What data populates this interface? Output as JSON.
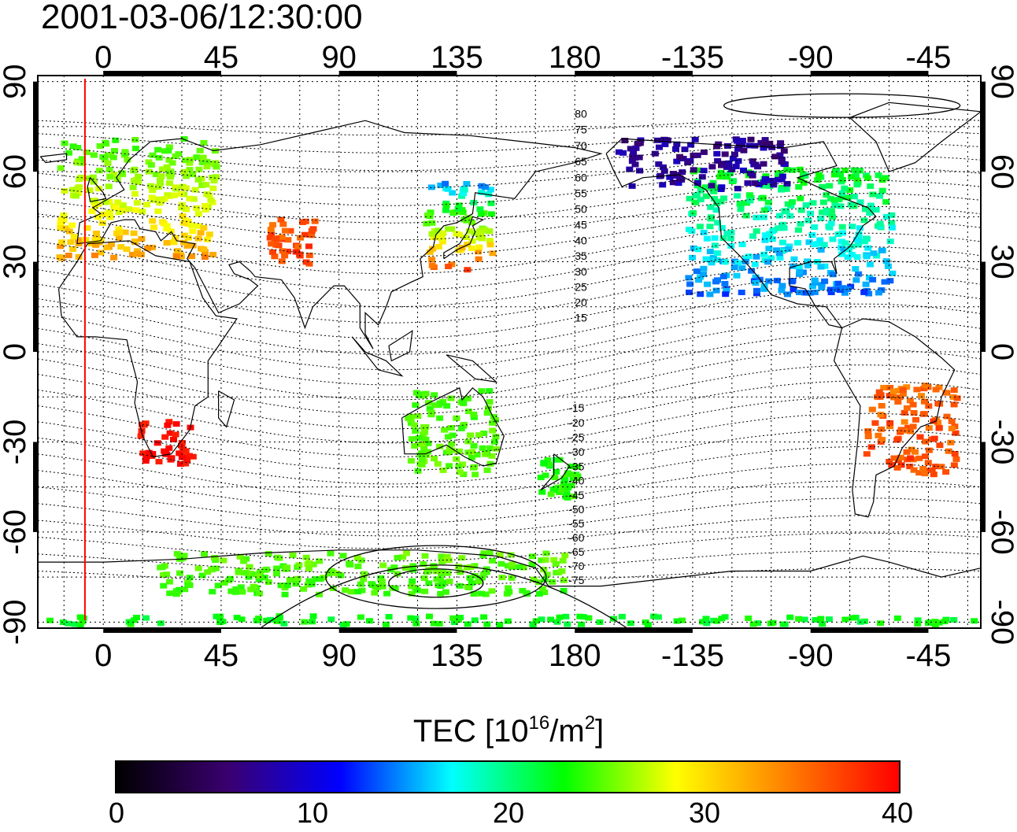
{
  "title": "2001-03-06/12:30:00",
  "lon_ticks_top": [
    "0",
    "45",
    "90",
    "135",
    "180",
    "-135",
    "-90",
    "-45"
  ],
  "lon_ticks_bottom": [
    "0",
    "45",
    "90",
    "135",
    "180",
    "-135",
    "-90",
    "-45"
  ],
  "lat_ticks_left": [
    "90",
    "60",
    "30",
    "0",
    "-30",
    "-60",
    "-90"
  ],
  "lat_ticks_right": [
    "90",
    "60",
    "30",
    "0",
    "-30",
    "-60",
    "-90"
  ],
  "contour_labels_north": [
    "80",
    "75",
    "70",
    "65",
    "60",
    "55",
    "50",
    "45",
    "40",
    "35",
    "30",
    "25",
    "20",
    "15"
  ],
  "contour_labels_south": [
    "-15",
    "-20",
    "-25",
    "-30",
    "-35",
    "-40",
    "-45",
    "-50",
    "-55",
    "-60",
    "-65",
    "-70",
    "-75"
  ],
  "colorbar": {
    "title_prefix": "TEC  [10",
    "title_exp1": "16",
    "title_mid": "/m",
    "title_exp2": "2",
    "title_suffix": "]",
    "ticks": [
      "0",
      "10",
      "20",
      "30",
      "40"
    ],
    "colors": [
      "#000000",
      "#3a0070",
      "#0000ff",
      "#00ffff",
      "#00ff00",
      "#ffff00",
      "#ff7f00",
      "#ff0000"
    ]
  },
  "map": {
    "lon_range": [
      -25,
      335
    ],
    "lat_range": [
      -92,
      92
    ],
    "lon_tick_values": [
      0,
      45,
      90,
      135,
      180,
      225,
      270,
      315
    ],
    "lat_tick_values": [
      90,
      60,
      30,
      0,
      -30,
      -60,
      -90
    ],
    "marker_longitude": -7,
    "marker_color": "#ff0000",
    "tec_regions": [
      {
        "name": "europe",
        "lon": [
          -18,
          42
        ],
        "lat": [
          32,
          72
        ],
        "tec": [
          34,
          22
        ]
      },
      {
        "name": "central-asia",
        "lon": [
          62,
          80
        ],
        "lat": [
          30,
          45
        ],
        "tec": [
          38,
          36
        ]
      },
      {
        "name": "japan",
        "lon": [
          122,
          148
        ],
        "lat": [
          28,
          58
        ],
        "tec": [
          38,
          12
        ]
      },
      {
        "name": "north-america",
        "lon": [
          222,
          300
        ],
        "lat": [
          20,
          62
        ],
        "tec": [
          12,
          20
        ]
      },
      {
        "name": "alaska-canada",
        "lon": [
          195,
          260
        ],
        "lat": [
          55,
          72
        ],
        "tec": [
          7,
          6
        ]
      },
      {
        "name": "south-america",
        "lon": [
          290,
          325
        ],
        "lat": [
          -40,
          -10
        ],
        "tec": [
          37,
          36
        ]
      },
      {
        "name": "southern-africa",
        "lon": [
          13,
          33
        ],
        "lat": [
          -37,
          -22
        ],
        "tec": [
          40,
          40
        ]
      },
      {
        "name": "australia",
        "lon": [
          115,
          150
        ],
        "lat": [
          -40,
          -12
        ],
        "tec": [
          24,
          22
        ]
      },
      {
        "name": "new-zealand",
        "lon": [
          165,
          180
        ],
        "lat": [
          -48,
          -35
        ],
        "tec": [
          22,
          20
        ]
      },
      {
        "name": "antarctica-ring",
        "lon": [
          20,
          175
        ],
        "lat": [
          -80,
          -66
        ],
        "tec": [
          22,
          24
        ]
      },
      {
        "name": "antarctica-south",
        "lon": [
          -22,
          335
        ],
        "lat": [
          -90,
          -87
        ],
        "tec": [
          20,
          20
        ]
      }
    ]
  }
}
